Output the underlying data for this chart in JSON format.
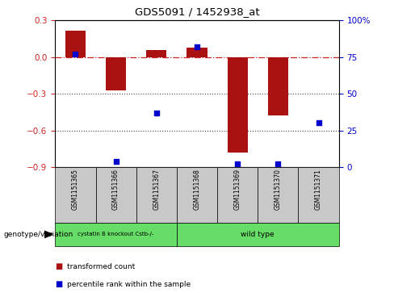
{
  "title": "GDS5091 / 1452938_at",
  "samples": [
    "GSM1151365",
    "GSM1151366",
    "GSM1151367",
    "GSM1151368",
    "GSM1151369",
    "GSM1151370",
    "GSM1151371"
  ],
  "red_values": [
    0.22,
    -0.27,
    0.06,
    0.08,
    -0.78,
    -0.48,
    0.0
  ],
  "blue_values_pct": [
    77,
    4,
    37,
    82,
    2,
    2,
    30
  ],
  "ylim_left": [
    -0.9,
    0.3
  ],
  "ylim_right": [
    0,
    100
  ],
  "yticks_left": [
    -0.9,
    -0.6,
    -0.3,
    0.0,
    0.3
  ],
  "yticks_right": [
    0,
    25,
    50,
    75,
    100
  ],
  "group_bg_color": "#66dd66",
  "sample_bg_color": "#c8c8c8",
  "bar_color": "#aa1111",
  "dot_color": "#0000cc",
  "hline_color": "#cc2222",
  "dotted_line_color": "#444444",
  "legend_red": "transformed count",
  "legend_blue": "percentile rank within the sample",
  "genotype_label": "genotype/variation",
  "group1_label": "cystatin B knockout Cstb-/-",
  "group2_label": "wild type",
  "group1_count": 3,
  "group2_count": 4,
  "fig_width": 4.88,
  "fig_height": 3.63,
  "dpi": 100
}
